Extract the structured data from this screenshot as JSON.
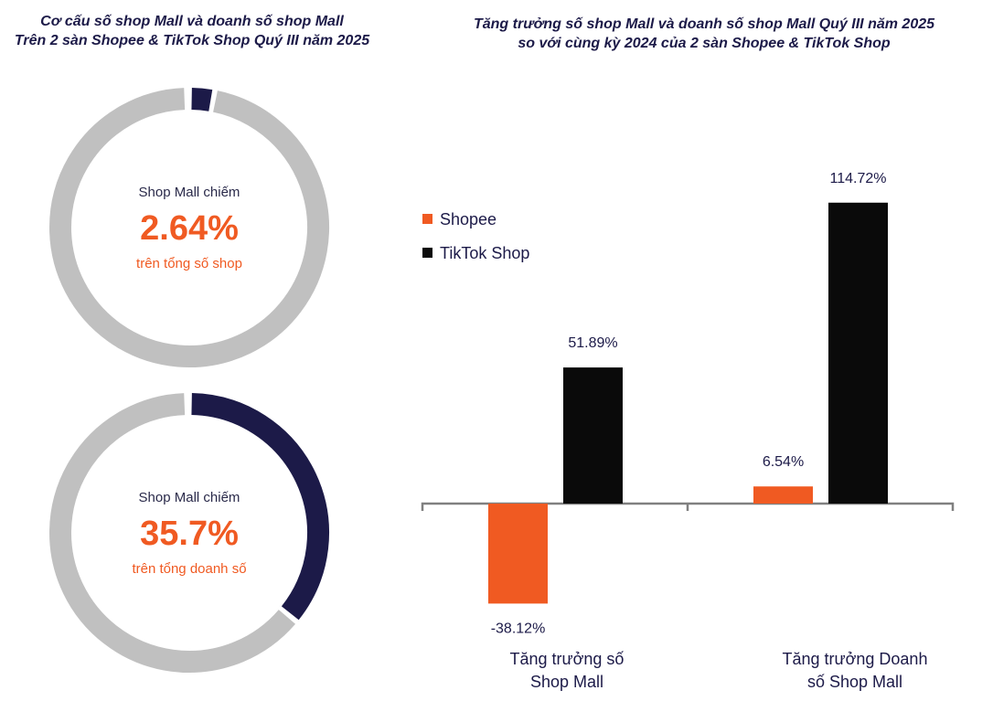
{
  "left_title": {
    "line1": "Cơ cấu số shop Mall và doanh số shop Mall",
    "line2": "Trên 2 sàn Shopee & TikTok Shop Quý III năm 2025"
  },
  "right_title": {
    "line1": "Tăng trưởng số shop Mall và doanh số shop Mall Quý III năm 2025",
    "line2": "so với cùng kỳ 2024 của 2 sàn Shopee & TikTok Shop"
  },
  "colors": {
    "mall": "#1c1a48",
    "rest": "#c0c0c0",
    "shopee": "#f05a22",
    "tiktok": "#0a0a0a",
    "accent_text": "#f05a22",
    "axis": "#808080"
  },
  "chart_data": [
    {
      "type": "pie",
      "donut": true,
      "share_percent": 2.64,
      "value_label": "2.64%",
      "caption_top": "Shop Mall chiếm",
      "caption_bottom": "trên tổng số shop"
    },
    {
      "type": "pie",
      "donut": true,
      "share_percent": 35.7,
      "value_label": "35.7%",
      "caption_top": "Shop Mall chiếm",
      "caption_bottom": "trên tổng doanh số"
    },
    {
      "type": "bar",
      "categories": [
        [
          "Tăng trưởng số",
          "Shop Mall"
        ],
        [
          "Tăng trưởng Doanh",
          "số Shop Mall"
        ]
      ],
      "series": [
        {
          "name": "Shopee",
          "values": [
            -38.12,
            6.54
          ],
          "labels": [
            "-38.12%",
            "6.54%"
          ]
        },
        {
          "name": "TikTok Shop",
          "values": [
            51.89,
            114.72
          ],
          "labels": [
            "51.89%",
            "114.72%"
          ]
        }
      ],
      "legend": "top-left",
      "grid": false
    }
  ]
}
